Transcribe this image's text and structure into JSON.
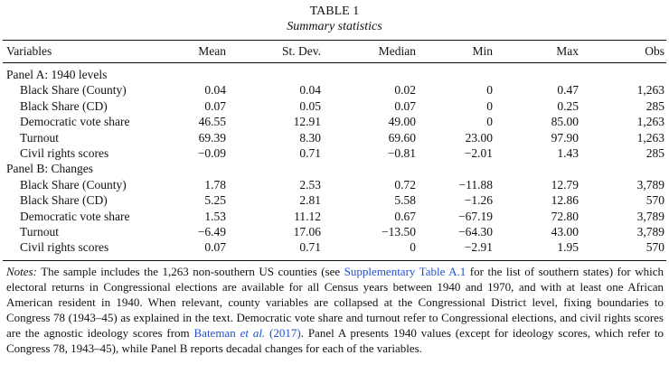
{
  "table": {
    "title": "TABLE 1",
    "subtitle": "Summary statistics",
    "headers": [
      "Variables",
      "Mean",
      "St. Dev.",
      "Median",
      "Min",
      "Max",
      "Obs"
    ],
    "rows": [
      {
        "kind": "panel",
        "label": "Panel A: 1940 levels"
      },
      {
        "kind": "data",
        "label": "Black Share (County)",
        "values": [
          "0.04",
          "0.04",
          "0.02",
          "0",
          "0.47",
          "1,263"
        ]
      },
      {
        "kind": "data",
        "label": "Black Share (CD)",
        "values": [
          "0.07",
          "0.05",
          "0.07",
          "0",
          "0.25",
          "285"
        ]
      },
      {
        "kind": "data",
        "label": "Democratic vote share",
        "values": [
          "46.55",
          "12.91",
          "49.00",
          "0",
          "85.00",
          "1,263"
        ]
      },
      {
        "kind": "data",
        "label": "Turnout",
        "values": [
          "69.39",
          "8.30",
          "69.60",
          "23.00",
          "97.90",
          "1,263"
        ]
      },
      {
        "kind": "data",
        "label": "Civil rights scores",
        "values": [
          "−0.09",
          "0.71",
          "−0.81",
          "−2.01",
          "1.43",
          "285"
        ]
      },
      {
        "kind": "panel",
        "label": "Panel B: Changes"
      },
      {
        "kind": "data",
        "label": "Black Share (County)",
        "values": [
          "1.78",
          "2.53",
          "0.72",
          "−11.88",
          "12.79",
          "3,789"
        ]
      },
      {
        "kind": "data",
        "label": "Black Share (CD)",
        "values": [
          "5.25",
          "2.81",
          "5.58",
          "−1.26",
          "12.86",
          "570"
        ]
      },
      {
        "kind": "data",
        "label": "Democratic vote share",
        "values": [
          "1.53",
          "11.12",
          "0.67",
          "−67.19",
          "72.80",
          "3,789"
        ]
      },
      {
        "kind": "data",
        "label": "Turnout",
        "values": [
          "−6.49",
          "17.06",
          "−13.50",
          "−64.30",
          "43.00",
          "3,789"
        ]
      },
      {
        "kind": "data",
        "label": "Civil rights scores",
        "values": [
          "0.07",
          "0.71",
          "0",
          "−2.91",
          "1.95",
          "570"
        ]
      }
    ]
  },
  "notes": {
    "lead": "Notes:",
    "text_1": " The sample includes the 1,263 non-southern US counties (see ",
    "link_1": "Supplementary Table A.1",
    "text_2": " for the list of southern states) for which electoral returns in Congressional elections are available for all Census years between 1940 and 1970, and with at least one African American resident in 1940. When relevant, county variables are collapsed at the Congressional District level, fixing boundaries to Congress 78 (1943–45) as explained in the text. Democratic vote share and turnout refer to Congressional elections, and civil rights scores are the agnostic ideology scores from ",
    "link_2_name": "Bateman ",
    "link_2_etal": "et al.",
    "link_2_year": " (2017)",
    "text_3": ". Panel A presents 1940 values (except for ideology scores, which refer to Congress 78, 1943–45), while Panel B reports decadal changes for each of the variables."
  },
  "colors": {
    "text": "#111111",
    "link": "#1f4fd1"
  }
}
